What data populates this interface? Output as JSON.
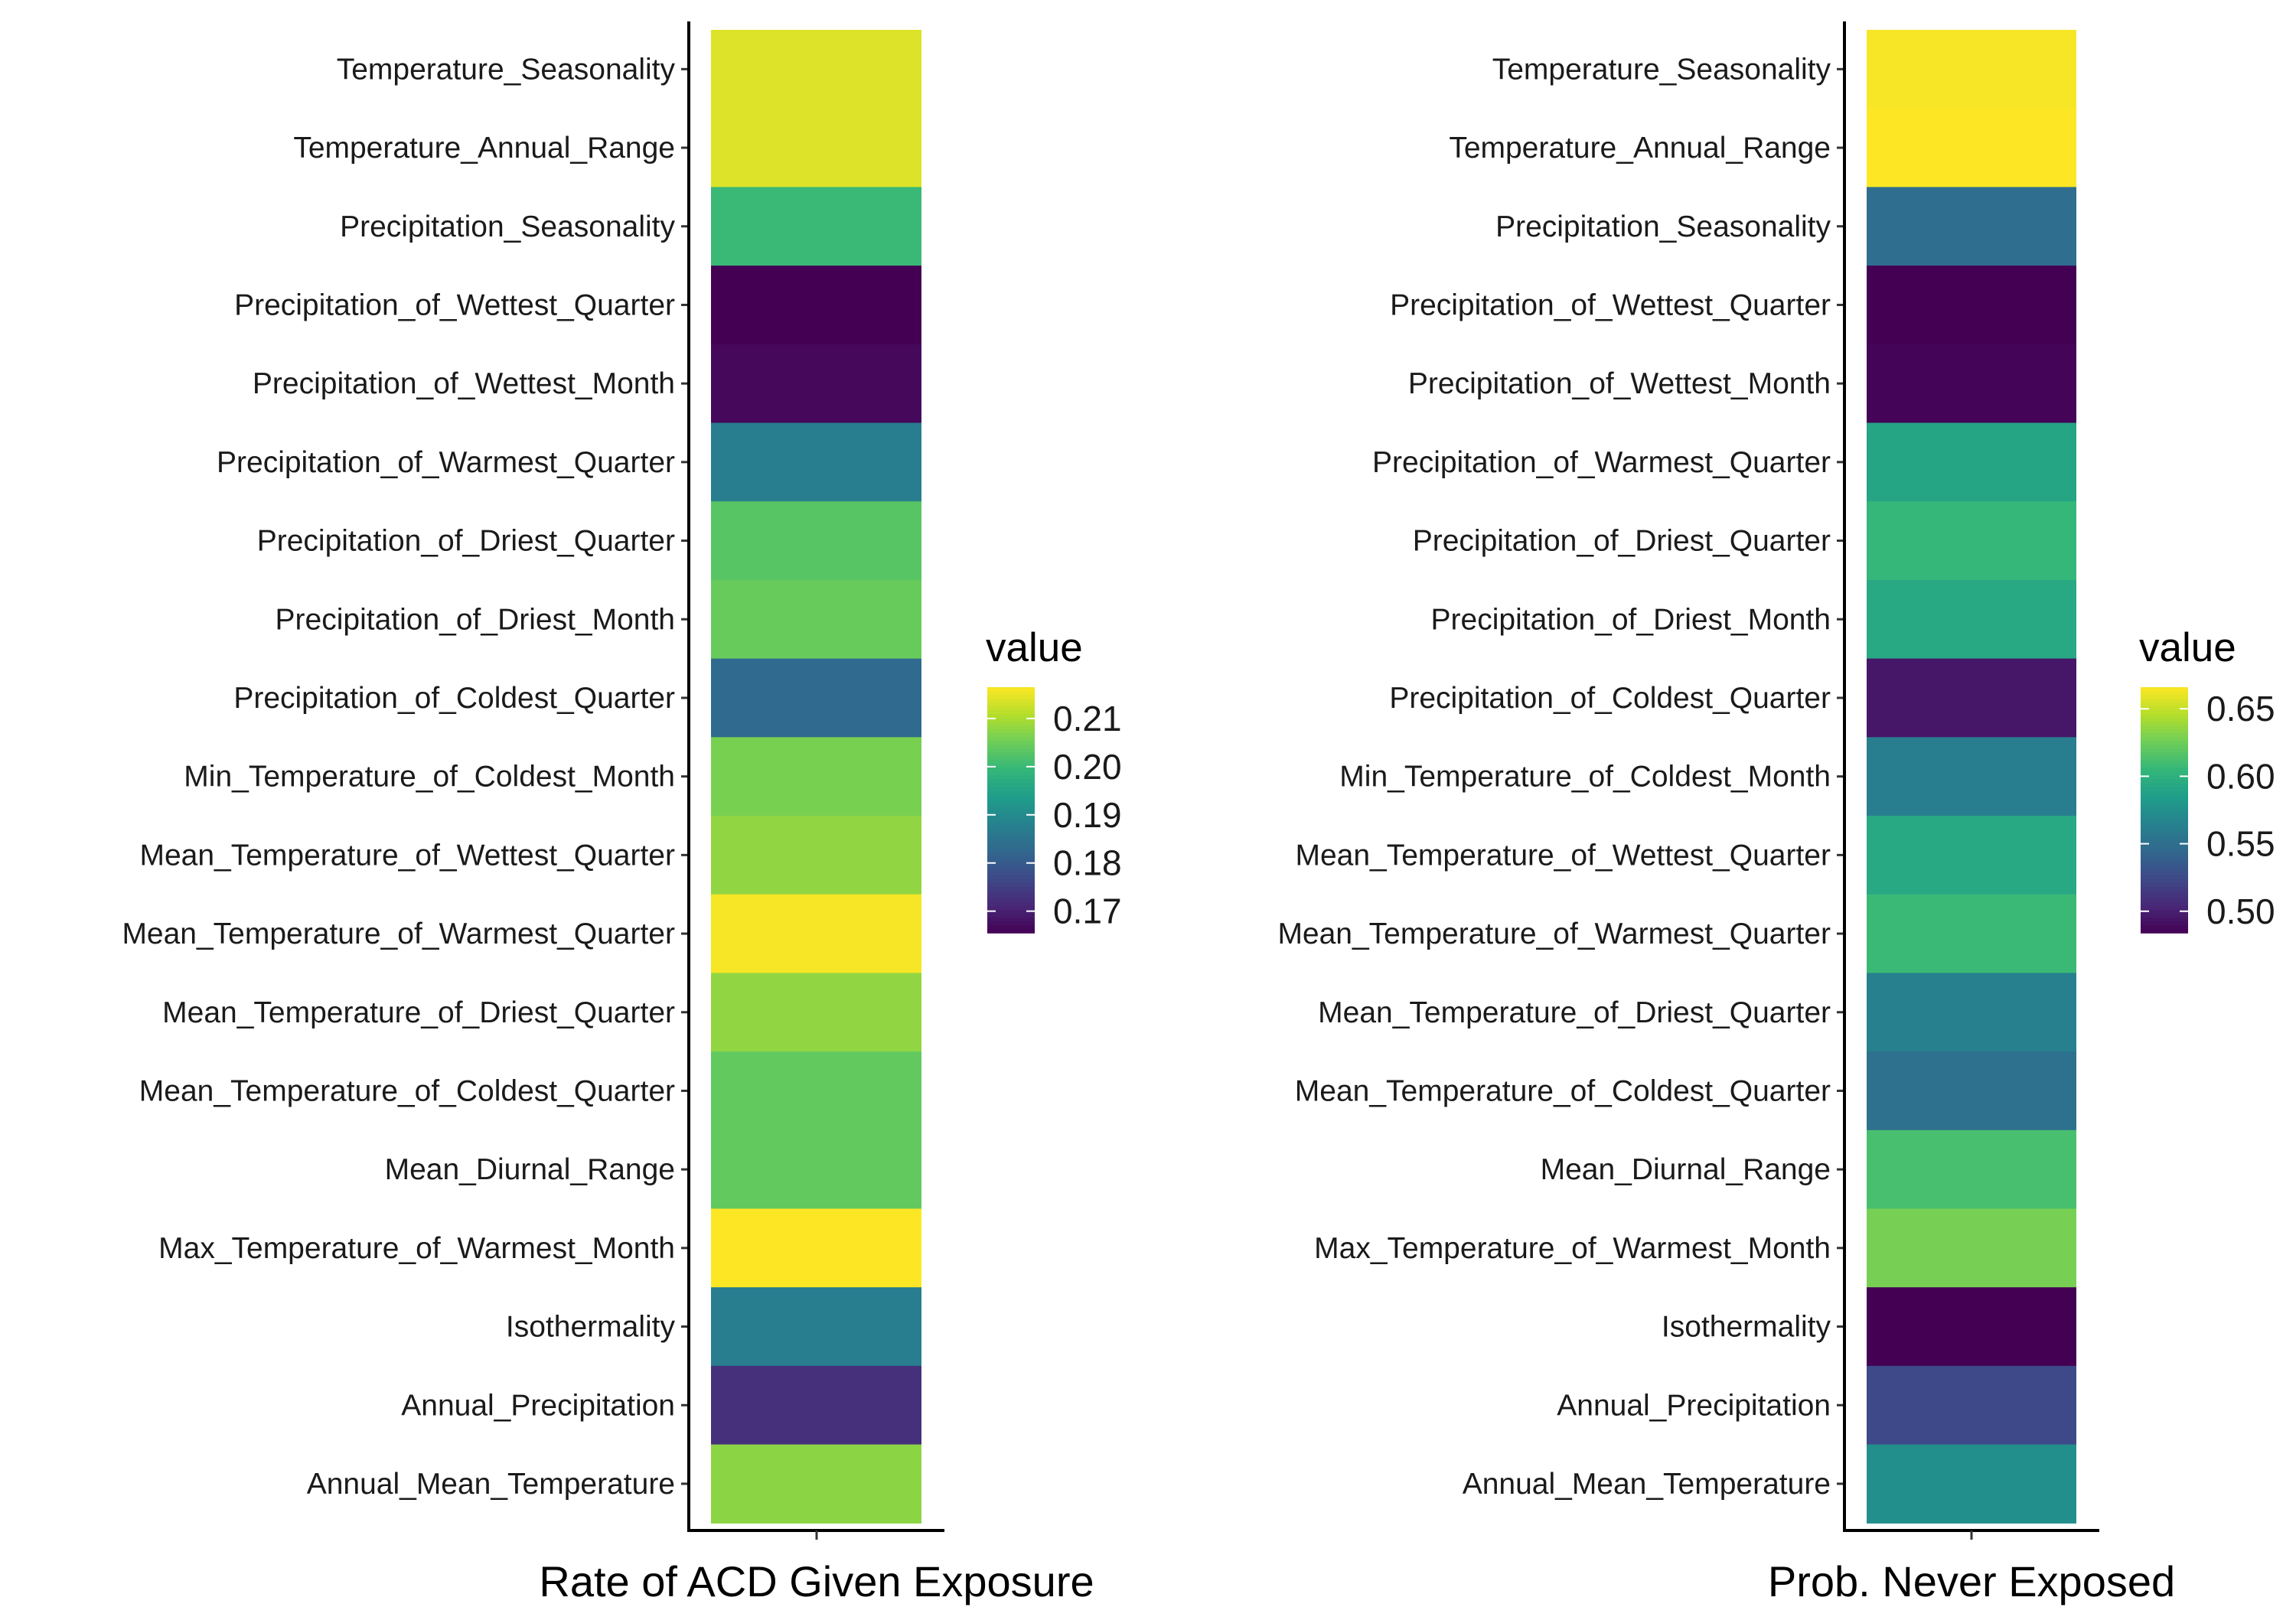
{
  "chart_data": [
    {
      "type": "heatmap",
      "xlabel": "Rate of ACD Given Exposure",
      "categories": [
        "Temperature_Seasonality",
        "Temperature_Annual_Range",
        "Precipitation_Seasonality",
        "Precipitation_of_Wettest_Quarter",
        "Precipitation_of_Wettest_Month",
        "Precipitation_of_Warmest_Quarter",
        "Precipitation_of_Driest_Quarter",
        "Precipitation_of_Driest_Month",
        "Precipitation_of_Coldest_Quarter",
        "Min_Temperature_of_Coldest_Month",
        "Mean_Temperature_of_Wettest_Quarter",
        "Mean_Temperature_of_Warmest_Quarter",
        "Mean_Temperature_of_Driest_Quarter",
        "Mean_Temperature_of_Coldest_Quarter",
        "Mean_Diurnal_Range",
        "Max_Temperature_of_Warmest_Month",
        "Isothermality",
        "Annual_Precipitation",
        "Annual_Mean_Temperature"
      ],
      "values": [
        0.214,
        0.214,
        0.2,
        0.1655,
        0.1665,
        0.187,
        0.203,
        0.2045,
        0.183,
        0.206,
        0.208,
        0.216,
        0.208,
        0.204,
        0.204,
        0.2165,
        0.187,
        0.1725,
        0.2075
      ],
      "legend": {
        "title": "value",
        "ticks": [
          0.17,
          0.18,
          0.19,
          0.2,
          0.21
        ],
        "tick_labels": [
          "0.17",
          "0.18",
          "0.19",
          "0.20",
          "0.21"
        ],
        "range": [
          0.1655,
          0.2165
        ],
        "position": "right"
      },
      "colormap": "viridis"
    },
    {
      "type": "heatmap",
      "xlabel": "Prob. Never Exposed",
      "categories": [
        "Temperature_Seasonality",
        "Temperature_Annual_Range",
        "Precipitation_Seasonality",
        "Precipitation_of_Wettest_Quarter",
        "Precipitation_of_Wettest_Month",
        "Precipitation_of_Warmest_Quarter",
        "Precipitation_of_Driest_Quarter",
        "Precipitation_of_Driest_Month",
        "Precipitation_of_Coldest_Quarter",
        "Min_Temperature_of_Coldest_Month",
        "Mean_Temperature_of_Wettest_Quarter",
        "Mean_Temperature_of_Warmest_Quarter",
        "Mean_Temperature_of_Driest_Quarter",
        "Mean_Temperature_of_Coldest_Quarter",
        "Mean_Diurnal_Range",
        "Max_Temperature_of_Warmest_Month",
        "Isothermality",
        "Annual_Precipitation",
        "Annual_Mean_Temperature"
      ],
      "values": [
        0.664,
        0.666,
        0.549,
        0.484,
        0.486,
        0.591,
        0.605,
        0.593,
        0.495,
        0.562,
        0.593,
        0.607,
        0.563,
        0.552,
        0.612,
        0.628,
        0.484,
        0.524,
        0.574
      ],
      "legend": {
        "title": "value",
        "ticks": [
          0.5,
          0.55,
          0.6,
          0.65
        ],
        "tick_labels": [
          "0.50",
          "0.55",
          "0.60",
          "0.65"
        ],
        "range": [
          0.484,
          0.666
        ],
        "position": "right"
      },
      "colormap": "viridis"
    }
  ],
  "colors": {
    "viridis": [
      "#440154",
      "#482878",
      "#3e4a89",
      "#31688e",
      "#26828e",
      "#1f9e89",
      "#35b779",
      "#6ece58",
      "#b5de2b",
      "#fde725"
    ]
  }
}
